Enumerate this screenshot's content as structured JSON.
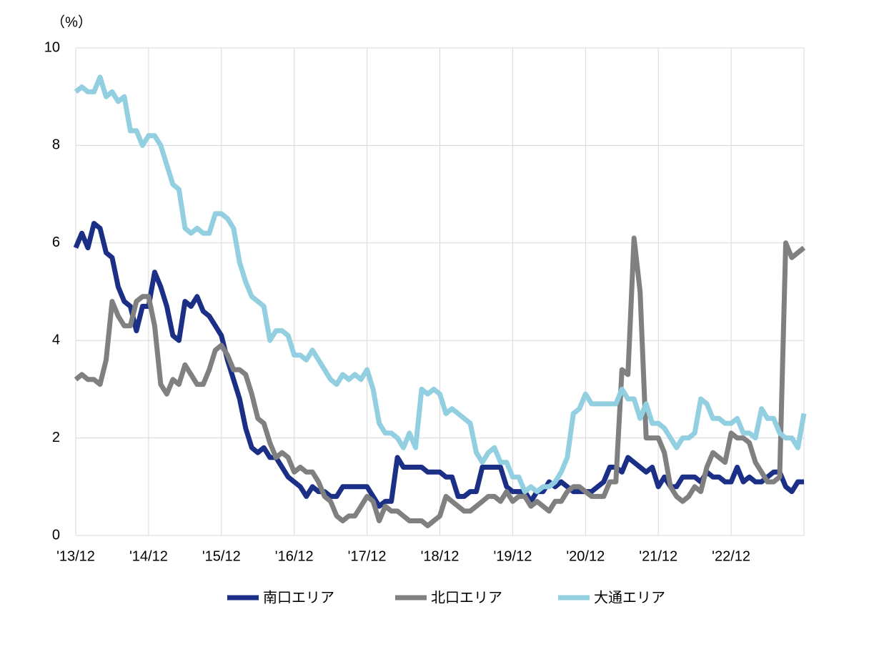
{
  "chart_data": {
    "type": "line",
    "y_label": "（%）",
    "categories": [
      "'13/12",
      null,
      null,
      null,
      null,
      null,
      null,
      null,
      null,
      null,
      null,
      null,
      "'14/12",
      null,
      null,
      null,
      null,
      null,
      null,
      null,
      null,
      null,
      null,
      null,
      "'15/12",
      null,
      null,
      null,
      null,
      null,
      null,
      null,
      null,
      null,
      null,
      null,
      "'16/12",
      null,
      null,
      null,
      null,
      null,
      null,
      null,
      null,
      null,
      null,
      null,
      "'17/12",
      null,
      null,
      null,
      null,
      null,
      null,
      null,
      null,
      null,
      null,
      null,
      "'18/12",
      null,
      null,
      null,
      null,
      null,
      null,
      null,
      null,
      null,
      null,
      null,
      "'19/12",
      null,
      null,
      null,
      null,
      null,
      null,
      null,
      null,
      null,
      null,
      null,
      "'20/12",
      null,
      null,
      null,
      null,
      null,
      null,
      null,
      null,
      null,
      null,
      null,
      "'21/12",
      null,
      null,
      null,
      null,
      null,
      null,
      null,
      null,
      null,
      null,
      null,
      "'22/12",
      null,
      null,
      null,
      null,
      null,
      null,
      null,
      null,
      null,
      null,
      null,
      null
    ],
    "series": [
      {
        "name": "南口エリア",
        "color": "#1c2f86",
        "values": [
          5.9,
          6.2,
          5.9,
          6.4,
          6.3,
          5.8,
          5.7,
          5.1,
          4.8,
          4.7,
          4.2,
          4.7,
          4.7,
          5.4,
          5.1,
          4.7,
          4.1,
          4.0,
          4.8,
          4.7,
          4.9,
          4.6,
          4.5,
          4.3,
          4.1,
          3.6,
          3.2,
          2.8,
          2.2,
          1.8,
          1.7,
          1.8,
          1.6,
          1.6,
          1.4,
          1.2,
          1.1,
          1.0,
          0.8,
          1.0,
          0.9,
          0.9,
          0.8,
          0.8,
          1.0,
          1.0,
          1.0,
          1.0,
          1.0,
          0.8,
          0.6,
          0.7,
          0.7,
          1.6,
          1.4,
          1.4,
          1.4,
          1.4,
          1.3,
          1.3,
          1.3,
          1.2,
          1.2,
          0.8,
          0.8,
          0.9,
          0.9,
          1.4,
          1.4,
          1.4,
          1.4,
          1.0,
          0.9,
          0.9,
          0.9,
          0.7,
          0.9,
          0.9,
          1.1,
          1.0,
          1.1,
          1.0,
          0.9,
          0.9,
          0.9,
          0.9,
          1.0,
          1.1,
          1.4,
          1.4,
          1.3,
          1.6,
          1.5,
          1.4,
          1.3,
          1.4,
          1.0,
          1.2,
          1.0,
          1.0,
          1.2,
          1.2,
          1.2,
          1.1,
          1.3,
          1.2,
          1.2,
          1.1,
          1.1,
          1.4,
          1.1,
          1.2,
          1.1,
          1.1,
          1.2,
          1.3,
          1.3,
          1.0,
          0.9,
          1.1,
          1.1
        ]
      },
      {
        "name": "北口エリア",
        "color": "#808080",
        "values": [
          3.2,
          3.3,
          3.2,
          3.2,
          3.1,
          3.6,
          4.8,
          4.5,
          4.3,
          4.3,
          4.8,
          4.9,
          4.9,
          4.3,
          3.1,
          2.9,
          3.2,
          3.1,
          3.5,
          3.3,
          3.1,
          3.1,
          3.4,
          3.8,
          3.9,
          3.7,
          3.4,
          3.4,
          3.3,
          2.9,
          2.4,
          2.3,
          1.9,
          1.6,
          1.7,
          1.6,
          1.3,
          1.4,
          1.3,
          1.3,
          1.1,
          0.8,
          0.7,
          0.4,
          0.3,
          0.4,
          0.4,
          0.6,
          0.8,
          0.7,
          0.3,
          0.6,
          0.5,
          0.5,
          0.4,
          0.3,
          0.3,
          0.3,
          0.2,
          0.3,
          0.4,
          0.8,
          0.7,
          0.6,
          0.5,
          0.5,
          0.6,
          0.7,
          0.8,
          0.8,
          0.7,
          0.9,
          0.7,
          0.8,
          0.8,
          0.6,
          0.7,
          0.6,
          0.5,
          0.7,
          0.7,
          0.9,
          1.0,
          1.0,
          0.9,
          0.8,
          0.8,
          0.8,
          1.1,
          1.1,
          3.4,
          3.3,
          6.1,
          5.0,
          2.0,
          2.0,
          2.0,
          1.7,
          1.0,
          0.8,
          0.7,
          0.8,
          1.0,
          0.9,
          1.4,
          1.7,
          1.6,
          1.5,
          2.1,
          2.0,
          2.0,
          1.9,
          1.5,
          1.3,
          1.1,
          1.1,
          1.2,
          6.0,
          5.7,
          5.8,
          5.9
        ]
      },
      {
        "name": "大通エリア",
        "color": "#92cfe0",
        "values": [
          9.1,
          9.2,
          9.1,
          9.1,
          9.4,
          9.0,
          9.1,
          8.9,
          9.0,
          8.3,
          8.3,
          8.0,
          8.2,
          8.2,
          8.0,
          7.6,
          7.2,
          7.1,
          6.3,
          6.2,
          6.3,
          6.2,
          6.2,
          6.6,
          6.6,
          6.5,
          6.3,
          5.6,
          5.2,
          4.9,
          4.8,
          4.7,
          4.0,
          4.2,
          4.2,
          4.1,
          3.7,
          3.7,
          3.6,
          3.8,
          3.6,
          3.4,
          3.2,
          3.1,
          3.3,
          3.2,
          3.3,
          3.2,
          3.4,
          3.0,
          2.3,
          2.1,
          2.1,
          2.0,
          1.8,
          2.1,
          1.8,
          3.0,
          2.9,
          3.0,
          2.9,
          2.5,
          2.6,
          2.5,
          2.4,
          2.3,
          1.7,
          1.5,
          1.7,
          1.8,
          1.5,
          1.5,
          1.2,
          1.2,
          0.9,
          1.0,
          0.9,
          1.0,
          1.0,
          1.1,
          1.3,
          1.6,
          2.5,
          2.6,
          2.9,
          2.7,
          2.7,
          2.7,
          2.7,
          2.7,
          3.0,
          2.8,
          2.8,
          2.4,
          2.7,
          2.3,
          2.3,
          2.2,
          2.0,
          1.8,
          2.0,
          2.0,
          2.1,
          2.8,
          2.7,
          2.4,
          2.4,
          2.3,
          2.3,
          2.4,
          2.1,
          2.1,
          2.0,
          2.6,
          2.4,
          2.4,
          2.1,
          2.0,
          2.0,
          1.8,
          2.5
        ]
      }
    ],
    "ylim": [
      0,
      10
    ],
    "yticks": [
      0,
      2,
      4,
      6,
      8,
      10
    ],
    "grid": true
  }
}
